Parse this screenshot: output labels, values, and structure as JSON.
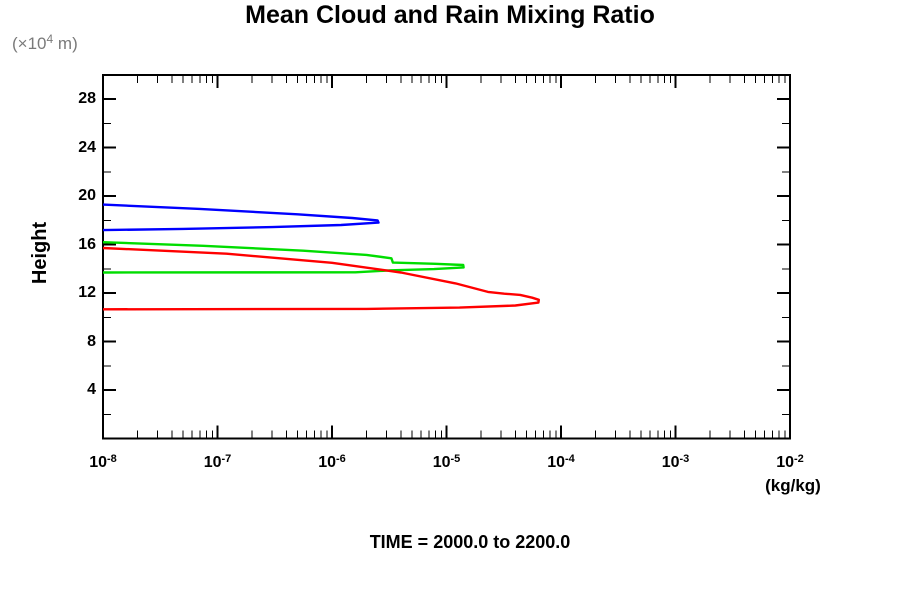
{
  "header": {
    "title": "Mean Cloud and Rain Mixing Ratio"
  },
  "axes": {
    "y_unit": {
      "prefix": "(×10",
      "sup": "4",
      "suffix": " m)"
    },
    "ylabel": "Height",
    "xlabel": "(kg/kg)"
  },
  "footer": {
    "time_label": "TIME = 2000.0 to 2200.0"
  },
  "colors": {
    "axis": "#000000",
    "unit_gray": "#7a7a7a",
    "blue": "#0000ff",
    "green": "#00dd00",
    "red": "#ff0000"
  },
  "chart_data": {
    "type": "line",
    "title": "Mean Cloud and Rain Mixing Ratio",
    "xlabel": "(kg/kg)",
    "ylabel": "Height (×10^4 m)",
    "x_scale": "log",
    "xlim": [
      1e-08,
      0.01
    ],
    "ylim": [
      0,
      30
    ],
    "x_major_exponents": [
      -8,
      -7,
      -6,
      -5,
      -4,
      -3,
      -2
    ],
    "y_major_ticks": [
      4,
      8,
      12,
      16,
      20,
      24,
      28
    ],
    "y_minor_ticks": [
      2,
      6,
      10,
      14,
      18,
      22,
      26
    ],
    "grid": false,
    "legend": "none",
    "annotation": "TIME = 2000.0 to 2200.0",
    "series": [
      {
        "name": "blue-profile",
        "color": "#0000ff",
        "points": [
          [
            1e-08,
            19.3
          ],
          [
            7e-08,
            18.95
          ],
          [
            5e-07,
            18.5
          ],
          [
            1.5e-06,
            18.2
          ],
          [
            2.5e-06,
            18.0
          ],
          [
            2.55e-06,
            17.82
          ],
          [
            1.2e-06,
            17.62
          ],
          [
            3e-07,
            17.45
          ],
          [
            5e-08,
            17.3
          ],
          [
            1e-08,
            17.2
          ]
        ]
      },
      {
        "name": "green-profile",
        "color": "#00dd00",
        "points": [
          [
            1e-08,
            16.2
          ],
          [
            7.5e-08,
            15.9
          ],
          [
            5.6e-07,
            15.5
          ],
          [
            2e-06,
            15.15
          ],
          [
            3.3e-06,
            14.87
          ],
          [
            3.4e-06,
            14.52
          ],
          [
            8e-06,
            14.42
          ],
          [
            1.4e-05,
            14.32
          ],
          [
            1.41e-05,
            14.12
          ],
          [
            7.8e-06,
            13.98
          ],
          [
            3.3e-06,
            13.88
          ],
          [
            1.6e-06,
            13.72
          ],
          [
            1e-08,
            13.7
          ]
        ]
      },
      {
        "name": "red-profile",
        "color": "#ff0000",
        "points": [
          [
            1e-08,
            15.72
          ],
          [
            1.2e-07,
            15.25
          ],
          [
            1e-06,
            14.5
          ],
          [
            4e-06,
            13.7
          ],
          [
            1.2e-05,
            12.8
          ],
          [
            2.3e-05,
            12.1
          ],
          [
            3.2e-05,
            11.95
          ],
          [
            4.4e-05,
            11.85
          ],
          [
            5.6e-05,
            11.62
          ],
          [
            6.4e-05,
            11.45
          ],
          [
            6.35e-05,
            11.22
          ],
          [
            4e-05,
            10.98
          ],
          [
            1.3e-05,
            10.8
          ],
          [
            2e-06,
            10.7
          ],
          [
            1e-08,
            10.66
          ]
        ]
      }
    ]
  }
}
